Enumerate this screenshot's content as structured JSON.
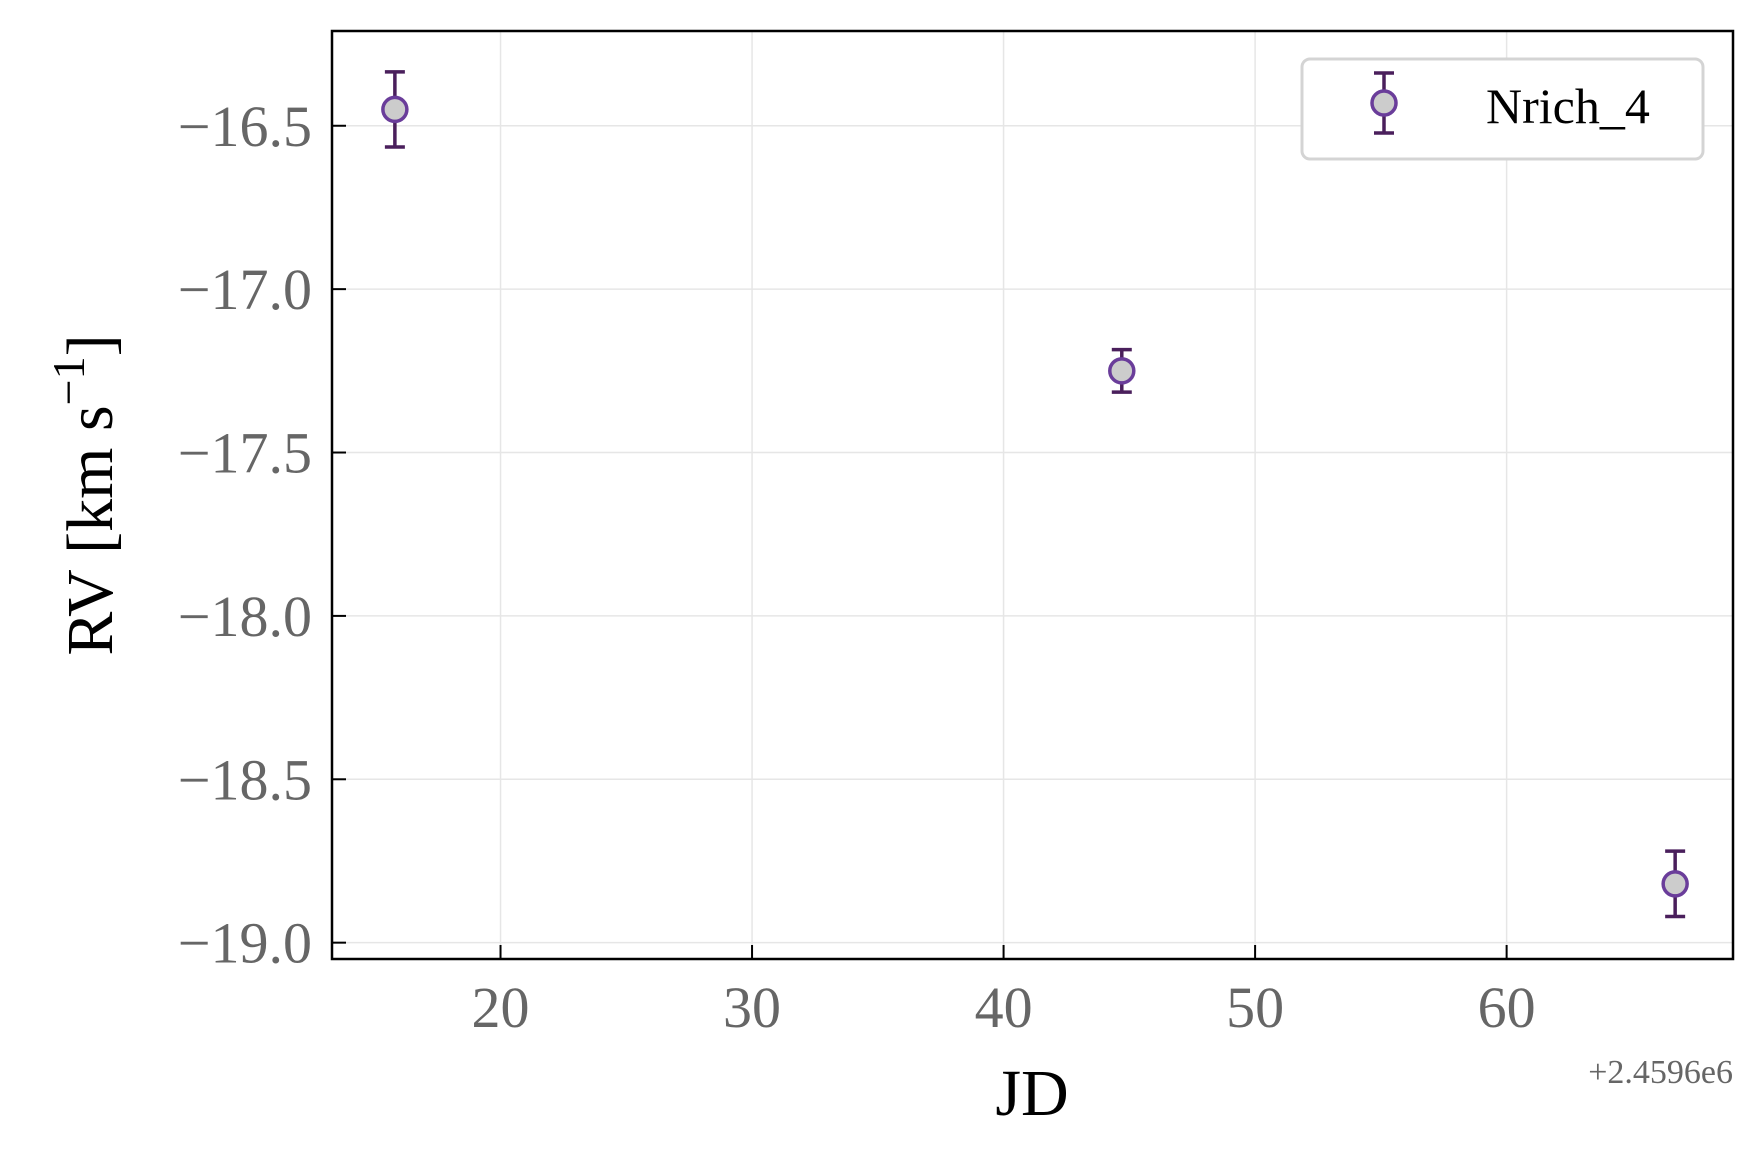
{
  "chart_data": {
    "type": "scatter",
    "title": "",
    "xlabel": "JD",
    "ylabel": "RV [km s$^{-1}$]",
    "x_offset_label": "+2.4596e6",
    "xlim": [
      13.3,
      69.0
    ],
    "ylim": [
      -19.05,
      -16.21
    ],
    "xticks": [
      20,
      30,
      40,
      50,
      60
    ],
    "yticks": [
      -16.5,
      -17.0,
      -17.5,
      -18.0,
      -18.5,
      -19.0
    ],
    "grid": true,
    "legend_position": "top-right",
    "series": [
      {
        "name": "Nrich_4",
        "marker": "circle",
        "marker_face": "#cccccc",
        "marker_edge": "#6a3d9a",
        "errorbar_color": "#4a1f5c",
        "x_offset": 2459600,
        "points": [
          {
            "x": 15.8,
            "y": -16.45,
            "yerr": 0.115
          },
          {
            "x": 44.7,
            "y": -17.25,
            "yerr": 0.065
          },
          {
            "x": 66.7,
            "y": -18.82,
            "yerr": 0.1
          }
        ]
      }
    ]
  }
}
